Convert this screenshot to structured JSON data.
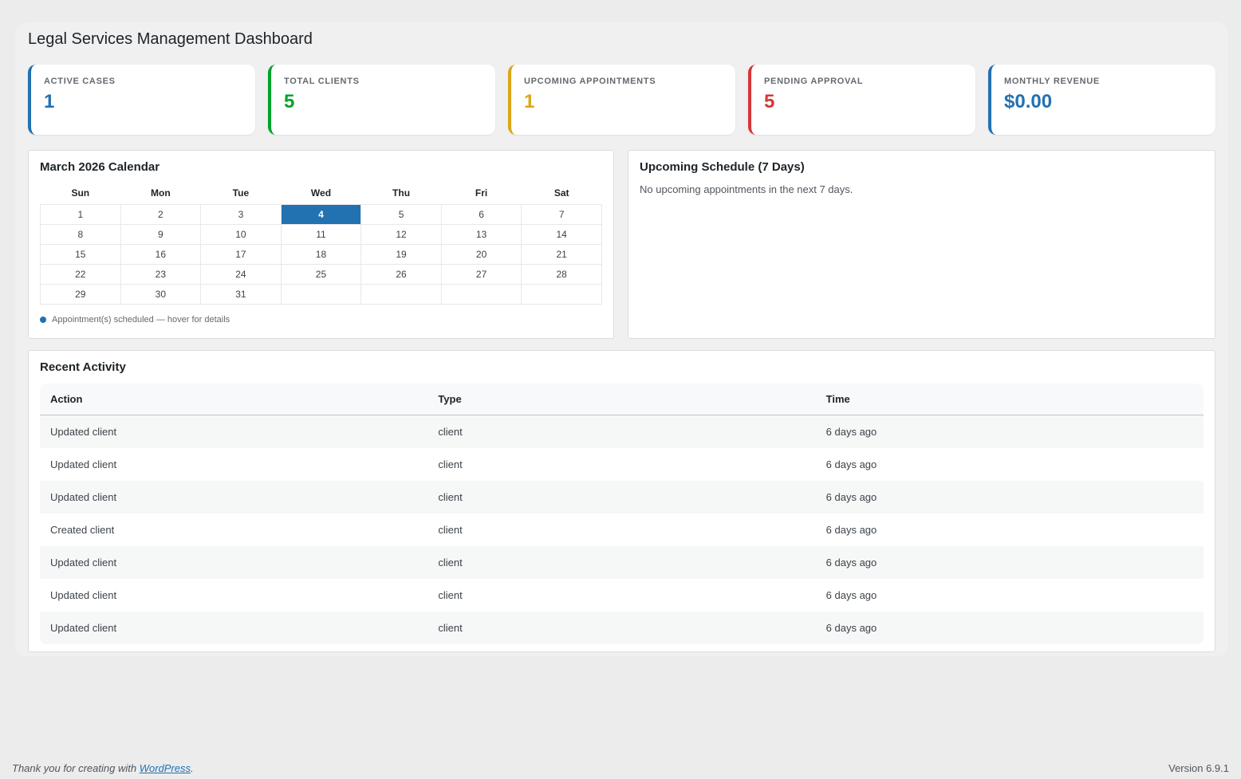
{
  "page": {
    "title": "Legal Services Management Dashboard",
    "footer": {
      "thanks_prefix": "Thank you for creating with ",
      "thanks_link": "WordPress",
      "thanks_suffix": ".",
      "version": "Version 6.9.1"
    }
  },
  "colors": {
    "blue": "#2271b1",
    "green": "#00a32a",
    "yellow": "#dba617",
    "red": "#d63638"
  },
  "stats": [
    {
      "label": "ACTIVE CASES",
      "value": "1",
      "color": "#2271b1"
    },
    {
      "label": "TOTAL CLIENTS",
      "value": "5",
      "color": "#00a32a"
    },
    {
      "label": "UPCOMING APPOINTMENTS",
      "value": "1",
      "color": "#dba617"
    },
    {
      "label": "PENDING APPROVAL",
      "value": "5",
      "color": "#d63638"
    },
    {
      "label": "MONTHLY REVENUE",
      "value": "$0.00",
      "color": "#2271b1"
    }
  ],
  "calendar": {
    "title": "March 2026 Calendar",
    "weekdays": [
      "Sun",
      "Mon",
      "Tue",
      "Wed",
      "Thu",
      "Fri",
      "Sat"
    ],
    "weeks": [
      [
        "1",
        "2",
        "3",
        "4",
        "5",
        "6",
        "7"
      ],
      [
        "8",
        "9",
        "10",
        "11",
        "12",
        "13",
        "14"
      ],
      [
        "15",
        "16",
        "17",
        "18",
        "19",
        "20",
        "21"
      ],
      [
        "22",
        "23",
        "24",
        "25",
        "26",
        "27",
        "28"
      ],
      [
        "29",
        "30",
        "31",
        "",
        "",
        "",
        ""
      ]
    ],
    "highlighted_day": "4",
    "legend": "Appointment(s) scheduled — hover for details"
  },
  "schedule": {
    "title": "Upcoming Schedule (7 Days)",
    "empty_message": "No upcoming appointments in the next 7 days."
  },
  "activity": {
    "title": "Recent Activity",
    "columns": [
      "Action",
      "Type",
      "Time"
    ],
    "rows": [
      {
        "action": "Updated client",
        "type": "client",
        "time": "6 days ago"
      },
      {
        "action": "Updated client",
        "type": "client",
        "time": "6 days ago"
      },
      {
        "action": "Updated client",
        "type": "client",
        "time": "6 days ago"
      },
      {
        "action": "Created client",
        "type": "client",
        "time": "6 days ago"
      },
      {
        "action": "Updated client",
        "type": "client",
        "time": "6 days ago"
      },
      {
        "action": "Updated client",
        "type": "client",
        "time": "6 days ago"
      },
      {
        "action": "Updated client",
        "type": "client",
        "time": "6 days ago"
      }
    ]
  }
}
